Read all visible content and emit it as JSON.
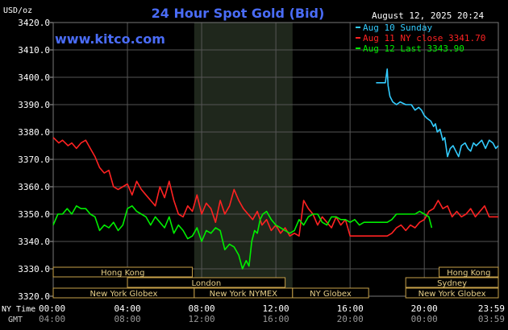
{
  "chart_data": {
    "type": "line",
    "title": "24 Hour Spot Gold (Bid)",
    "watermark": "www.kitco.com",
    "datetime": "August 12, 2025 20:24",
    "ylabel": "USD/oz",
    "ylim": [
      3320,
      3420
    ],
    "y_ticks": [
      "3420.0",
      "3410.0",
      "3400.0",
      "3390.0",
      "3380.0",
      "3370.0",
      "3360.0",
      "3350.0",
      "3340.0",
      "3330.0",
      "3320.0"
    ],
    "x_ticks_ny": [
      "00:00",
      "04:00",
      "08:00",
      "12:00",
      "16:00",
      "20:00",
      "23:59"
    ],
    "x_ticks_gmt": [
      "04:00",
      "08:00",
      "12:00",
      "16:00",
      "20:00",
      "00:00",
      "03:59"
    ],
    "x_row_labels": {
      "ny": "NY Time",
      "gmt": "GMT"
    },
    "grid": true,
    "legend_position": "top-right",
    "highlight_band_hours": [
      7.6,
      12.9
    ],
    "colors": {
      "sunday": "#33ccff",
      "close": "#ff2222",
      "last": "#00ee00",
      "title": "#4a6cf7",
      "grid": "#555555"
    },
    "series": [
      {
        "name": "Aug 10 Sunday",
        "color": "#33ccff",
        "x": [
          17.4,
          17.9,
          18.0,
          18.05,
          18.15,
          18.3,
          18.5,
          18.7,
          19.0,
          19.3,
          19.5,
          19.7,
          19.85,
          20.0,
          20.15,
          20.35,
          20.5,
          20.6,
          20.7,
          20.85,
          21.0,
          21.1,
          21.25,
          21.4,
          21.55,
          21.7,
          21.85,
          22.0,
          22.2,
          22.35,
          22.5,
          22.65,
          22.8,
          22.95,
          23.1,
          23.3,
          23.5,
          23.7,
          23.85,
          23.99
        ],
        "y": [
          3398,
          3398,
          3403,
          3397,
          3393,
          3391,
          3390,
          3391,
          3390,
          3390,
          3388,
          3389,
          3388,
          3386,
          3385,
          3384,
          3382,
          3383,
          3380,
          3381,
          3377,
          3378,
          3371,
          3374,
          3375,
          3373,
          3371,
          3375,
          3376,
          3374,
          3373,
          3376,
          3375,
          3376,
          3377,
          3374,
          3377,
          3376,
          3374,
          3375
        ]
      },
      {
        "name": "Aug 11 NY close 3341.70",
        "color": "#ff2222",
        "x": [
          0.0,
          0.3,
          0.5,
          0.8,
          1.0,
          1.25,
          1.5,
          1.75,
          2.0,
          2.25,
          2.5,
          2.75,
          3.0,
          3.25,
          3.5,
          3.75,
          4.0,
          4.25,
          4.5,
          4.75,
          5.0,
          5.25,
          5.5,
          5.75,
          6.0,
          6.25,
          6.5,
          6.75,
          7.0,
          7.25,
          7.5,
          7.75,
          8.0,
          8.25,
          8.5,
          8.75,
          9.0,
          9.25,
          9.5,
          9.75,
          10.0,
          10.25,
          10.5,
          10.75,
          11.0,
          11.25,
          11.5,
          11.75,
          12.0,
          12.25,
          12.5,
          12.75,
          13.0,
          13.25,
          13.5,
          13.75,
          14.0,
          14.25,
          14.5,
          14.75,
          15.0,
          15.25,
          15.5,
          15.75,
          16.0,
          16.25,
          16.5,
          16.75,
          17.0,
          17.25,
          17.5,
          17.75,
          18.0,
          18.25,
          18.5,
          18.75,
          19.0,
          19.25,
          19.5,
          19.75,
          20.0,
          20.25,
          20.5,
          20.75,
          21.0,
          21.25,
          21.5,
          21.75,
          22.0,
          22.25,
          22.5,
          22.75,
          23.0,
          23.25,
          23.5,
          23.75,
          23.99
        ],
        "y": [
          3378,
          3376,
          3377,
          3375,
          3376,
          3374,
          3376,
          3377,
          3374,
          3371,
          3367,
          3365,
          3366,
          3360,
          3359,
          3360,
          3361,
          3357,
          3362,
          3359,
          3357,
          3355,
          3353,
          3360,
          3356,
          3362,
          3355,
          3350,
          3349,
          3353,
          3351,
          3357,
          3350,
          3354,
          3352,
          3347,
          3355,
          3350,
          3353,
          3359,
          3355,
          3352,
          3350,
          3348,
          3351,
          3346,
          3348,
          3344,
          3346,
          3343,
          3345,
          3342,
          3343,
          3342,
          3355,
          3352,
          3350,
          3346,
          3349,
          3347,
          3345,
          3349,
          3346,
          3348,
          3342,
          3342,
          3342,
          3342,
          3342,
          3342,
          3342,
          3342,
          3342,
          3343,
          3345,
          3346,
          3344,
          3346,
          3345,
          3347,
          3348,
          3351,
          3352,
          3355,
          3352,
          3353,
          3349,
          3351,
          3349,
          3350,
          3352,
          3349,
          3351,
          3353,
          3349,
          3349,
          3349
        ]
      },
      {
        "name": "Aug 12 Last 3343.90",
        "color": "#00ee00",
        "x": [
          0.0,
          0.25,
          0.5,
          0.75,
          1.0,
          1.25,
          1.5,
          1.75,
          2.0,
          2.25,
          2.5,
          2.75,
          3.0,
          3.25,
          3.5,
          3.75,
          4.0,
          4.25,
          4.5,
          4.75,
          5.0,
          5.25,
          5.5,
          5.75,
          6.0,
          6.25,
          6.5,
          6.75,
          7.0,
          7.25,
          7.5,
          7.75,
          8.0,
          8.25,
          8.5,
          8.75,
          9.0,
          9.25,
          9.5,
          9.75,
          10.0,
          10.2,
          10.4,
          10.55,
          10.7,
          10.85,
          11.0,
          11.15,
          11.3,
          11.5,
          11.75,
          12.0,
          12.25,
          12.5,
          12.75,
          13.0,
          13.25,
          13.5,
          13.75,
          14.0,
          14.25,
          14.5,
          14.75,
          15.0,
          15.25,
          15.5,
          15.75,
          16.0,
          16.25,
          16.5,
          16.75,
          17.0,
          17.25,
          17.5,
          17.75,
          18.0,
          18.25,
          18.5,
          18.75,
          19.0,
          19.25,
          19.5,
          19.75,
          20.0,
          20.25,
          20.4
        ],
        "y": [
          3346,
          3350,
          3350,
          3352,
          3350,
          3353,
          3352,
          3352,
          3350,
          3349,
          3344,
          3346,
          3345,
          3347,
          3344,
          3346,
          3352,
          3353,
          3351,
          3350,
          3349,
          3346,
          3349,
          3347,
          3345,
          3349,
          3343,
          3346,
          3344,
          3341,
          3342,
          3345,
          3340,
          3344,
          3343,
          3345,
          3344,
          3337,
          3339,
          3338,
          3335,
          3330,
          3333,
          3331,
          3340,
          3344,
          3343,
          3348,
          3350,
          3351,
          3348,
          3346,
          3345,
          3344,
          3343,
          3344,
          3348,
          3346,
          3349,
          3350,
          3350,
          3347,
          3346,
          3349,
          3349,
          3348,
          3348,
          3347,
          3348,
          3346,
          3347,
          3347,
          3347,
          3347,
          3347,
          3347,
          3348,
          3350,
          3350,
          3350,
          3350,
          3350,
          3351,
          3350,
          3349,
          3345
        ]
      }
    ],
    "sessions": [
      {
        "label": "Hong Kong",
        "row": 0,
        "start": 0.0,
        "end": 7.5
      },
      {
        "label": "Hong Kong",
        "row": 0,
        "start": 20.8,
        "end": 23.99
      },
      {
        "label": "London",
        "row": 1,
        "start": 4.0,
        "end": 12.5
      },
      {
        "label": "Sydney",
        "row": 1,
        "start": 19.0,
        "end": 23.99
      },
      {
        "label": "New York Globex",
        "row": 2,
        "start": 0.0,
        "end": 7.6
      },
      {
        "label": "New York NYMEX",
        "row": 2,
        "start": 7.6,
        "end": 12.9
      },
      {
        "label": "NY Globex",
        "row": 2,
        "start": 12.9,
        "end": 17.0
      },
      {
        "label": "New York Globex",
        "row": 2,
        "start": 19.0,
        "end": 23.99
      }
    ]
  }
}
